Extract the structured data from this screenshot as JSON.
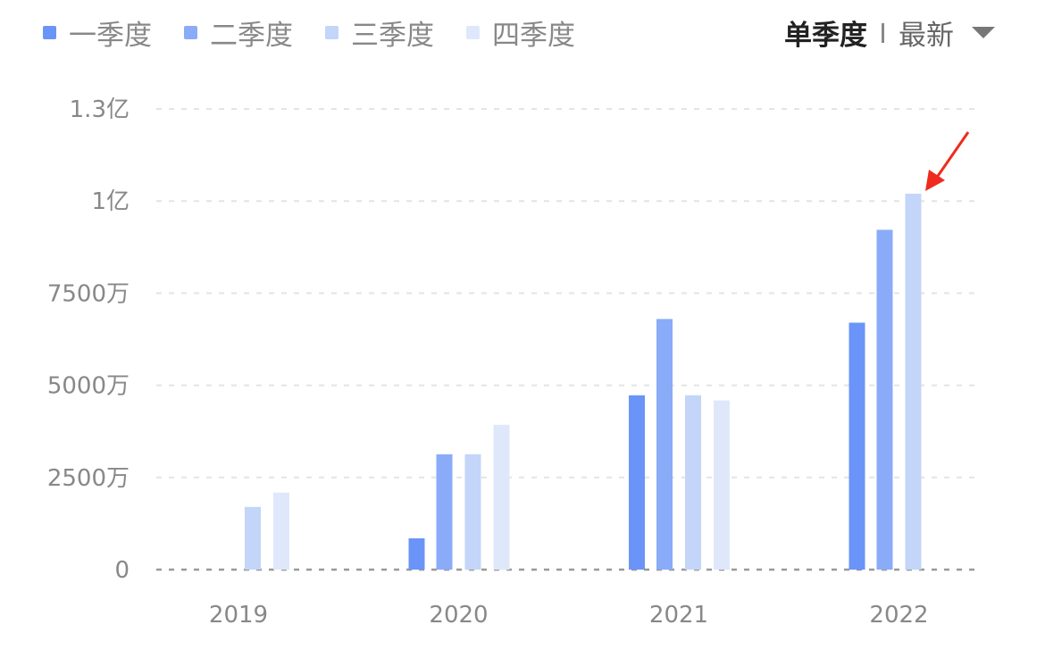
{
  "header": {
    "mode_label": "单季度",
    "sort_label": "最新"
  },
  "colors": {
    "q1": "#6a94f8",
    "q2": "#8aabf8",
    "q3": "#c3d5f8",
    "q4": "#dfe8fb",
    "annotation": "#f02a1e"
  },
  "chart_data": {
    "type": "bar",
    "categories": [
      "2019",
      "2020",
      "2021",
      "2022"
    ],
    "legend_position": "top-left",
    "grid": true,
    "ylim": [
      0,
      125000000
    ],
    "y_ticks": [
      {
        "value": 0,
        "label": "0"
      },
      {
        "value": 25000000,
        "label": "2500万"
      },
      {
        "value": 50000000,
        "label": "5000万"
      },
      {
        "value": 75000000,
        "label": "7500万"
      },
      {
        "value": 100000000,
        "label": "1亿"
      },
      {
        "value": 125000000,
        "label": "1.3亿"
      }
    ],
    "series": [
      {
        "name": "一季度",
        "values": [
          null,
          8500000,
          47300000,
          67000000
        ]
      },
      {
        "name": "二季度",
        "values": [
          null,
          31300000,
          68000000,
          92200000
        ]
      },
      {
        "name": "三季度",
        "values": [
          17000000,
          31300000,
          47300000,
          102000000
        ]
      },
      {
        "name": "四季度",
        "values": [
          20900000,
          39300000,
          45900000,
          null
        ]
      }
    ],
    "annotation": "red arrow pointing to 2022 三季度 bar"
  }
}
